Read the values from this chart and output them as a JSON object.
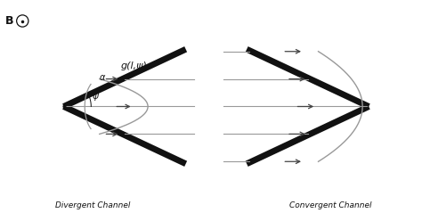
{
  "channel_lw": 5,
  "channel_color": "#111111",
  "line_color": "#999999",
  "arrow_color": "#444444",
  "text_color": "#111111",
  "title_left": "Divergent Channel",
  "title_right": "Convergent Channel",
  "label_B": "B",
  "label_alpha": "α",
  "label_psi": "ψ",
  "label_g": "g(l,ψ)",
  "fig_width": 4.74,
  "fig_height": 2.39,
  "dpi": 100
}
